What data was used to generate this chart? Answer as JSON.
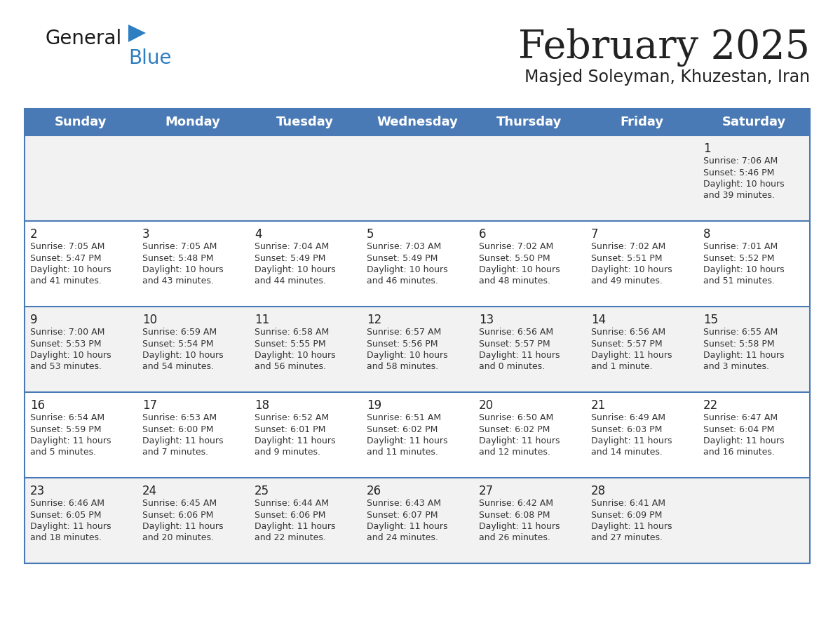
{
  "title": "February 2025",
  "subtitle": "Masjed Soleyman, Khuzestan, Iran",
  "header_bg": "#4a7ab5",
  "header_text": "#ffffff",
  "day_headers": [
    "Sunday",
    "Monday",
    "Tuesday",
    "Wednesday",
    "Thursday",
    "Friday",
    "Saturday"
  ],
  "row_bg_light": "#f2f2f2",
  "row_bg_white": "#ffffff",
  "cell_text_color": "#333333",
  "day_num_color": "#222222",
  "border_color": "#4a7ab5",
  "logo_general_color": "#1a1a1a",
  "logo_blue_color": "#2e7ec2",
  "calendar_data": [
    [
      null,
      null,
      null,
      null,
      null,
      null,
      {
        "day": 1,
        "sunrise": "7:06 AM",
        "sunset": "5:46 PM",
        "daylight": "10 hours and 39 minutes"
      }
    ],
    [
      {
        "day": 2,
        "sunrise": "7:05 AM",
        "sunset": "5:47 PM",
        "daylight": "10 hours and 41 minutes"
      },
      {
        "day": 3,
        "sunrise": "7:05 AM",
        "sunset": "5:48 PM",
        "daylight": "10 hours and 43 minutes"
      },
      {
        "day": 4,
        "sunrise": "7:04 AM",
        "sunset": "5:49 PM",
        "daylight": "10 hours and 44 minutes"
      },
      {
        "day": 5,
        "sunrise": "7:03 AM",
        "sunset": "5:49 PM",
        "daylight": "10 hours and 46 minutes"
      },
      {
        "day": 6,
        "sunrise": "7:02 AM",
        "sunset": "5:50 PM",
        "daylight": "10 hours and 48 minutes"
      },
      {
        "day": 7,
        "sunrise": "7:02 AM",
        "sunset": "5:51 PM",
        "daylight": "10 hours and 49 minutes"
      },
      {
        "day": 8,
        "sunrise": "7:01 AM",
        "sunset": "5:52 PM",
        "daylight": "10 hours and 51 minutes"
      }
    ],
    [
      {
        "day": 9,
        "sunrise": "7:00 AM",
        "sunset": "5:53 PM",
        "daylight": "10 hours and 53 minutes"
      },
      {
        "day": 10,
        "sunrise": "6:59 AM",
        "sunset": "5:54 PM",
        "daylight": "10 hours and 54 minutes"
      },
      {
        "day": 11,
        "sunrise": "6:58 AM",
        "sunset": "5:55 PM",
        "daylight": "10 hours and 56 minutes"
      },
      {
        "day": 12,
        "sunrise": "6:57 AM",
        "sunset": "5:56 PM",
        "daylight": "10 hours and 58 minutes"
      },
      {
        "day": 13,
        "sunrise": "6:56 AM",
        "sunset": "5:57 PM",
        "daylight": "11 hours and 0 minutes"
      },
      {
        "day": 14,
        "sunrise": "6:56 AM",
        "sunset": "5:57 PM",
        "daylight": "11 hours and 1 minute"
      },
      {
        "day": 15,
        "sunrise": "6:55 AM",
        "sunset": "5:58 PM",
        "daylight": "11 hours and 3 minutes"
      }
    ],
    [
      {
        "day": 16,
        "sunrise": "6:54 AM",
        "sunset": "5:59 PM",
        "daylight": "11 hours and 5 minutes"
      },
      {
        "day": 17,
        "sunrise": "6:53 AM",
        "sunset": "6:00 PM",
        "daylight": "11 hours and 7 minutes"
      },
      {
        "day": 18,
        "sunrise": "6:52 AM",
        "sunset": "6:01 PM",
        "daylight": "11 hours and 9 minutes"
      },
      {
        "day": 19,
        "sunrise": "6:51 AM",
        "sunset": "6:02 PM",
        "daylight": "11 hours and 11 minutes"
      },
      {
        "day": 20,
        "sunrise": "6:50 AM",
        "sunset": "6:02 PM",
        "daylight": "11 hours and 12 minutes"
      },
      {
        "day": 21,
        "sunrise": "6:49 AM",
        "sunset": "6:03 PM",
        "daylight": "11 hours and 14 minutes"
      },
      {
        "day": 22,
        "sunrise": "6:47 AM",
        "sunset": "6:04 PM",
        "daylight": "11 hours and 16 minutes"
      }
    ],
    [
      {
        "day": 23,
        "sunrise": "6:46 AM",
        "sunset": "6:05 PM",
        "daylight": "11 hours and 18 minutes"
      },
      {
        "day": 24,
        "sunrise": "6:45 AM",
        "sunset": "6:06 PM",
        "daylight": "11 hours and 20 minutes"
      },
      {
        "day": 25,
        "sunrise": "6:44 AM",
        "sunset": "6:06 PM",
        "daylight": "11 hours and 22 minutes"
      },
      {
        "day": 26,
        "sunrise": "6:43 AM",
        "sunset": "6:07 PM",
        "daylight": "11 hours and 24 minutes"
      },
      {
        "day": 27,
        "sunrise": "6:42 AM",
        "sunset": "6:08 PM",
        "daylight": "11 hours and 26 minutes"
      },
      {
        "day": 28,
        "sunrise": "6:41 AM",
        "sunset": "6:09 PM",
        "daylight": "11 hours and 27 minutes"
      },
      null
    ]
  ]
}
